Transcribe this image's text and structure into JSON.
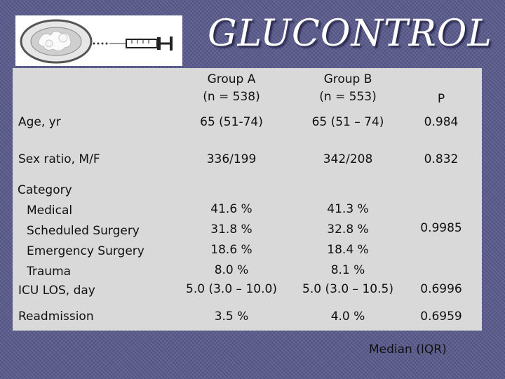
{
  "slide": {
    "title": "GLUCONTROL"
  },
  "logo": {
    "icon": "syringe-plate-icon"
  },
  "table": {
    "headers": {
      "group_a": "Group A",
      "group_a_n": "(n = 538)",
      "group_b": "Group B",
      "group_b_n": "(n = 553)",
      "p": "P"
    },
    "rows": {
      "age": {
        "label": "Age, yr",
        "a": "65 (51-74)",
        "b": "65 (51 – 74)",
        "p": "0.984"
      },
      "sex": {
        "label": "Sex ratio, M/F",
        "a": "336/199",
        "b": "342/208",
        "p": "0.832"
      },
      "category": {
        "label": "Category",
        "subs": [
          "Medical",
          "Scheduled Surgery",
          "Emergency Surgery",
          "Trauma"
        ],
        "a": [
          "41.6 %",
          "31.8 %",
          "18.6 %",
          "8.0 %"
        ],
        "b": [
          "41.3 %",
          "32.8 %",
          "18.4 %",
          "8.1 %"
        ],
        "p": "0.9985"
      },
      "icu": {
        "label": "ICU LOS, day",
        "a": "5.0 (3.0 – 10.0)",
        "b": "5.0 (3.0 – 10.5)",
        "p": "0.6996"
      },
      "readmission": {
        "label": "Readmission",
        "a": "3.5 %",
        "b": "4.0 %",
        "p": "0.6959"
      }
    }
  },
  "footnote": "Median (IQR)"
}
